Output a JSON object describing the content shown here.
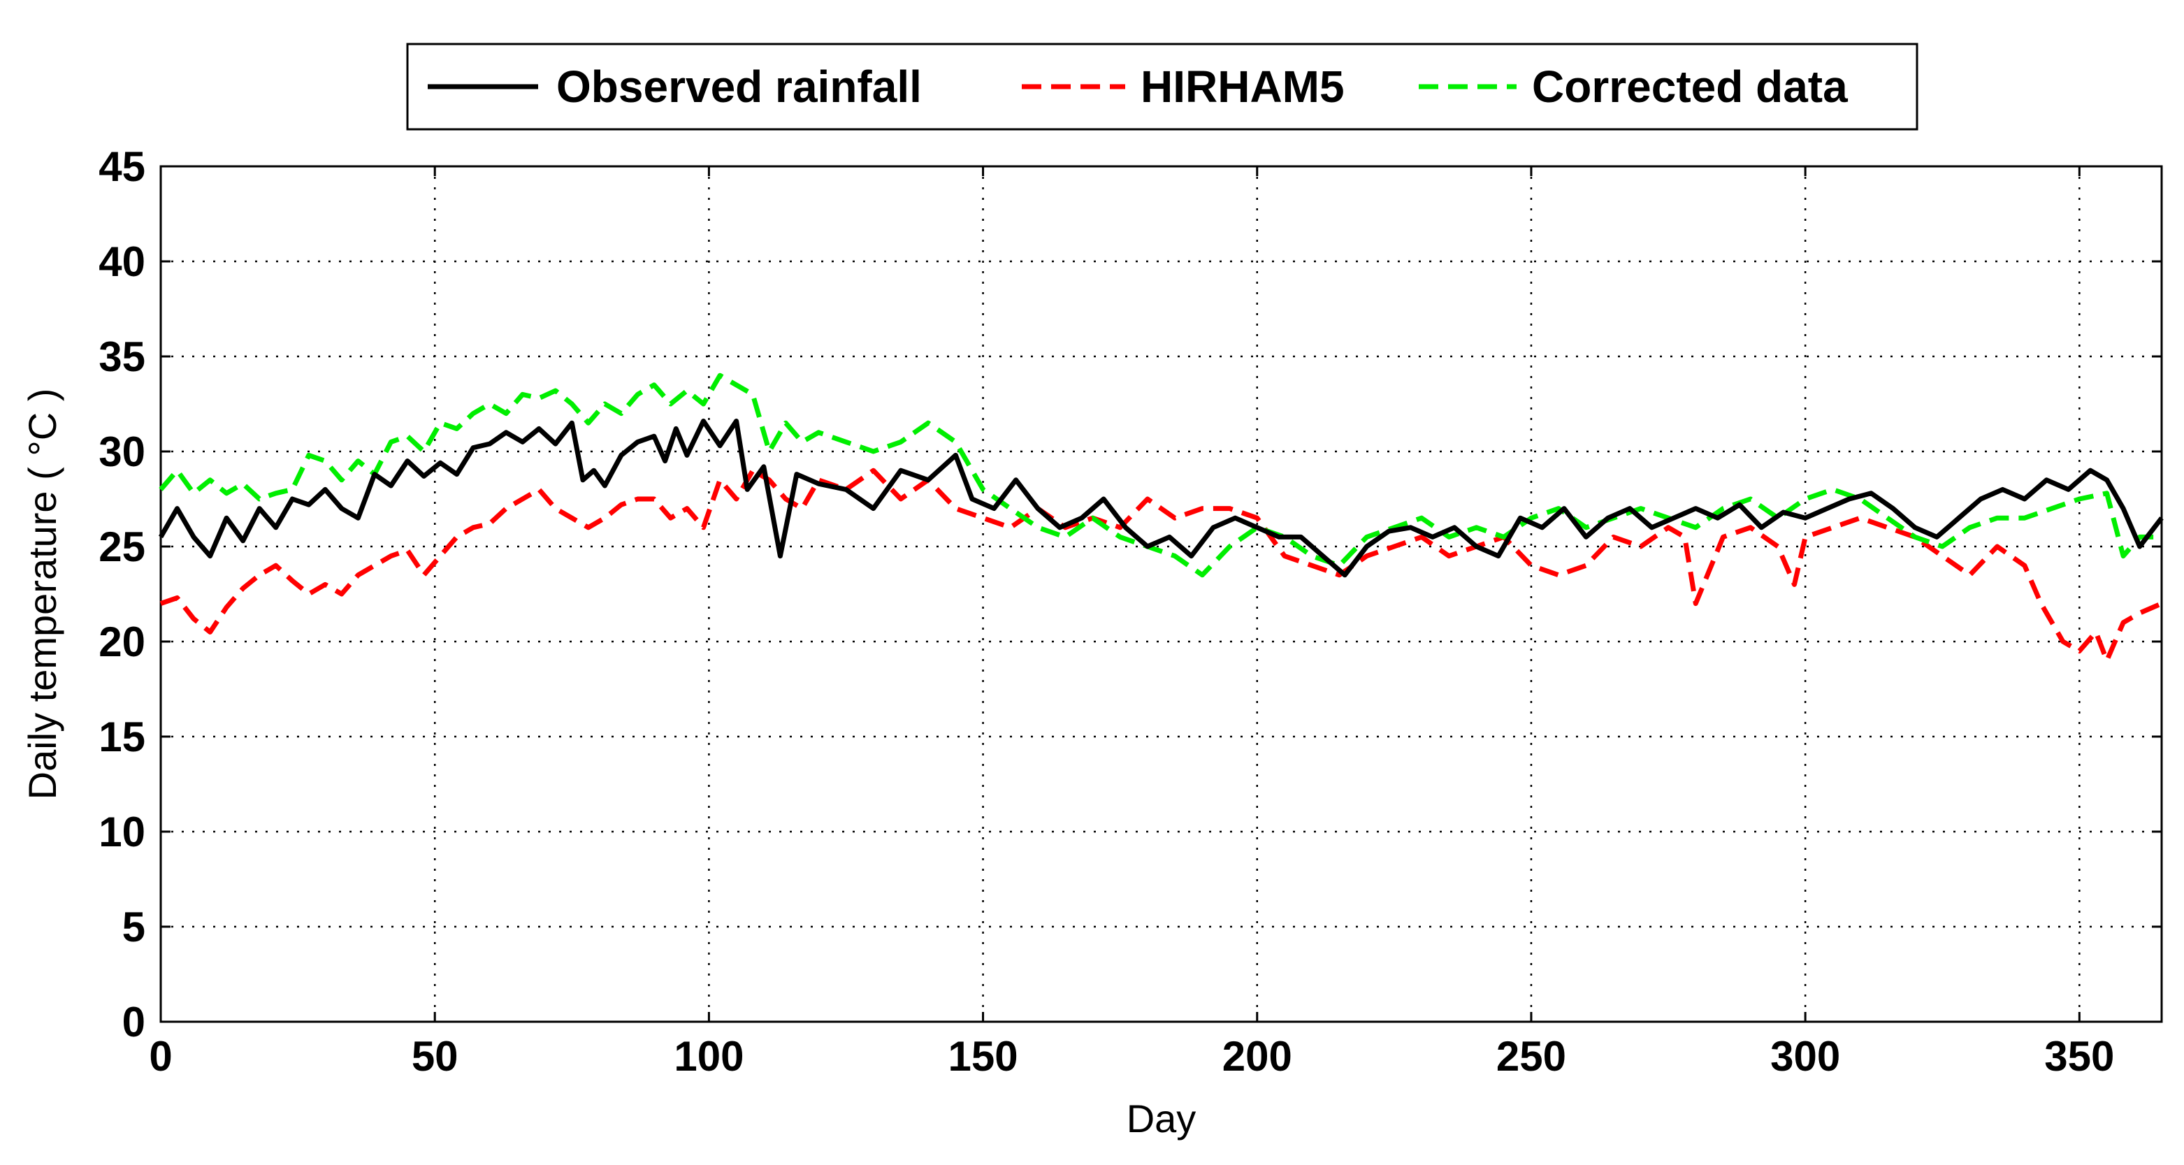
{
  "chart_data": {
    "type": "line",
    "title": "",
    "xlabel": "Day",
    "ylabel": "Daily temperature ( °C )",
    "xlim": [
      0,
      365
    ],
    "ylim": [
      0,
      45
    ],
    "xticks": [
      0,
      50,
      100,
      150,
      200,
      250,
      300,
      350
    ],
    "yticks": [
      0,
      5,
      10,
      15,
      20,
      25,
      30,
      35,
      40,
      45
    ],
    "grid": true,
    "legend_position": "top-center",
    "colors": {
      "observed": "#000000",
      "hirham": "#ff0000",
      "corrected": "#00ee00"
    },
    "series": [
      {
        "name": "Observed rainfall",
        "style": "solid",
        "color": "#000000",
        "x": [
          0,
          3,
          6,
          9,
          12,
          15,
          18,
          21,
          24,
          27,
          30,
          33,
          36,
          39,
          42,
          45,
          48,
          51,
          54,
          57,
          60,
          63,
          66,
          69,
          72,
          75,
          77,
          79,
          81,
          84,
          87,
          90,
          92,
          94,
          96,
          99,
          102,
          105,
          107,
          110,
          113,
          116,
          120,
          125,
          130,
          135,
          140,
          145,
          148,
          152,
          156,
          160,
          164,
          168,
          172,
          176,
          180,
          184,
          188,
          192,
          196,
          200,
          204,
          208,
          212,
          216,
          220,
          224,
          228,
          232,
          236,
          240,
          244,
          248,
          252,
          256,
          260,
          264,
          268,
          272,
          276,
          280,
          284,
          288,
          292,
          296,
          300,
          304,
          308,
          312,
          316,
          320,
          324,
          328,
          332,
          336,
          340,
          344,
          348,
          352,
          355,
          358,
          361,
          365
        ],
        "y": [
          25.5,
          27.0,
          25.5,
          24.5,
          26.5,
          25.3,
          27.0,
          26.0,
          27.5,
          27.2,
          28.0,
          27.0,
          26.5,
          28.8,
          28.2,
          29.5,
          28.7,
          29.4,
          28.8,
          30.2,
          30.4,
          31.0,
          30.5,
          31.2,
          30.4,
          31.5,
          28.5,
          29.0,
          28.2,
          29.8,
          30.5,
          30.8,
          29.5,
          31.2,
          29.8,
          31.6,
          30.3,
          31.6,
          28.0,
          29.2,
          24.5,
          28.8,
          28.3,
          28.0,
          27.0,
          29.0,
          28.5,
          29.8,
          27.5,
          27.0,
          28.5,
          27.0,
          26.0,
          26.5,
          27.5,
          26.0,
          25.0,
          25.5,
          24.5,
          26.0,
          26.5,
          26.0,
          25.5,
          25.5,
          24.5,
          23.5,
          25.0,
          25.8,
          26.0,
          25.5,
          26.0,
          25.0,
          24.5,
          26.5,
          26.0,
          27.0,
          25.5,
          26.5,
          27.0,
          26.0,
          26.5,
          27.0,
          26.5,
          27.2,
          26.0,
          26.8,
          26.5,
          27.0,
          27.5,
          27.8,
          27.0,
          26.0,
          25.5,
          26.5,
          27.5,
          28.0,
          27.5,
          28.5,
          28.0,
          29.0,
          28.5,
          27.0,
          25.0,
          26.5
        ]
      },
      {
        "name": "HIRHAM5",
        "style": "dashed",
        "color": "#ff0000",
        "x": [
          0,
          3,
          6,
          9,
          12,
          15,
          18,
          21,
          24,
          27,
          30,
          33,
          36,
          39,
          42,
          45,
          48,
          51,
          54,
          57,
          60,
          63,
          66,
          69,
          72,
          75,
          78,
          81,
          84,
          87,
          90,
          93,
          96,
          99,
          102,
          105,
          108,
          111,
          114,
          117,
          120,
          125,
          130,
          135,
          140,
          145,
          150,
          155,
          160,
          165,
          170,
          175,
          180,
          185,
          190,
          195,
          200,
          205,
          210,
          215,
          220,
          225,
          230,
          235,
          240,
          245,
          250,
          255,
          260,
          265,
          270,
          275,
          278,
          280,
          285,
          290,
          295,
          298,
          300,
          305,
          310,
          315,
          320,
          325,
          330,
          335,
          340,
          343,
          347,
          350,
          353,
          355,
          358,
          361,
          365
        ],
        "y": [
          22.0,
          22.3,
          21.2,
          20.5,
          21.8,
          22.8,
          23.5,
          24.0,
          23.2,
          22.5,
          23.0,
          22.5,
          23.5,
          24.0,
          24.5,
          24.8,
          23.5,
          24.5,
          25.5,
          26.0,
          26.2,
          27.0,
          27.5,
          28.0,
          27.0,
          26.5,
          26.0,
          26.5,
          27.2,
          27.5,
          27.5,
          26.5,
          27.0,
          26.0,
          28.5,
          27.5,
          29.0,
          28.5,
          27.5,
          27.0,
          28.5,
          28.0,
          29.0,
          27.5,
          28.5,
          27.0,
          26.5,
          26.0,
          27.0,
          26.0,
          26.5,
          26.0,
          27.5,
          26.5,
          27.0,
          27.0,
          26.5,
          24.5,
          24.0,
          23.5,
          24.5,
          25.0,
          25.5,
          24.5,
          25.0,
          25.5,
          24.0,
          23.5,
          24.0,
          25.5,
          25.0,
          26.0,
          25.5,
          22.0,
          25.5,
          26.0,
          25.0,
          23.0,
          25.5,
          26.0,
          26.5,
          26.0,
          25.5,
          24.5,
          23.5,
          25.0,
          24.0,
          22.0,
          20.0,
          19.5,
          20.5,
          19.0,
          21.0,
          21.5,
          22.0
        ]
      },
      {
        "name": "Corrected data",
        "style": "dashed",
        "color": "#00ee00",
        "x": [
          0,
          3,
          6,
          9,
          12,
          15,
          18,
          21,
          24,
          27,
          30,
          33,
          36,
          39,
          42,
          45,
          48,
          51,
          54,
          57,
          60,
          63,
          66,
          69,
          72,
          75,
          78,
          81,
          84,
          87,
          90,
          93,
          96,
          99,
          102,
          105,
          108,
          111,
          114,
          117,
          120,
          125,
          130,
          135,
          140,
          145,
          150,
          155,
          160,
          165,
          170,
          175,
          180,
          185,
          190,
          195,
          200,
          205,
          210,
          215,
          220,
          225,
          230,
          235,
          240,
          245,
          250,
          255,
          260,
          265,
          270,
          275,
          280,
          285,
          290,
          295,
          300,
          305,
          310,
          315,
          320,
          325,
          330,
          335,
          340,
          345,
          350,
          355,
          358,
          361,
          365
        ],
        "y": [
          28.0,
          29.0,
          27.8,
          28.5,
          27.8,
          28.3,
          27.5,
          27.8,
          28.0,
          29.8,
          29.5,
          28.5,
          29.5,
          28.8,
          30.5,
          30.8,
          30.0,
          31.5,
          31.2,
          32.0,
          32.5,
          32.0,
          33.0,
          32.8,
          33.2,
          32.5,
          31.5,
          32.5,
          32.0,
          33.0,
          33.5,
          32.5,
          33.2,
          32.5,
          34.0,
          33.5,
          33.0,
          30.0,
          31.5,
          30.5,
          31.0,
          30.5,
          30.0,
          30.5,
          31.5,
          30.5,
          28.0,
          27.0,
          26.0,
          25.5,
          26.5,
          25.5,
          25.0,
          24.5,
          23.5,
          25.0,
          26.0,
          25.5,
          24.5,
          24.0,
          25.5,
          26.0,
          26.5,
          25.5,
          26.0,
          25.5,
          26.5,
          27.0,
          26.0,
          26.5,
          27.0,
          26.5,
          26.0,
          27.0,
          27.5,
          26.5,
          27.5,
          28.0,
          27.5,
          26.5,
          25.5,
          25.0,
          26.0,
          26.5,
          26.5,
          27.0,
          27.5,
          27.8,
          24.5,
          25.5,
          25.5
        ]
      }
    ]
  }
}
